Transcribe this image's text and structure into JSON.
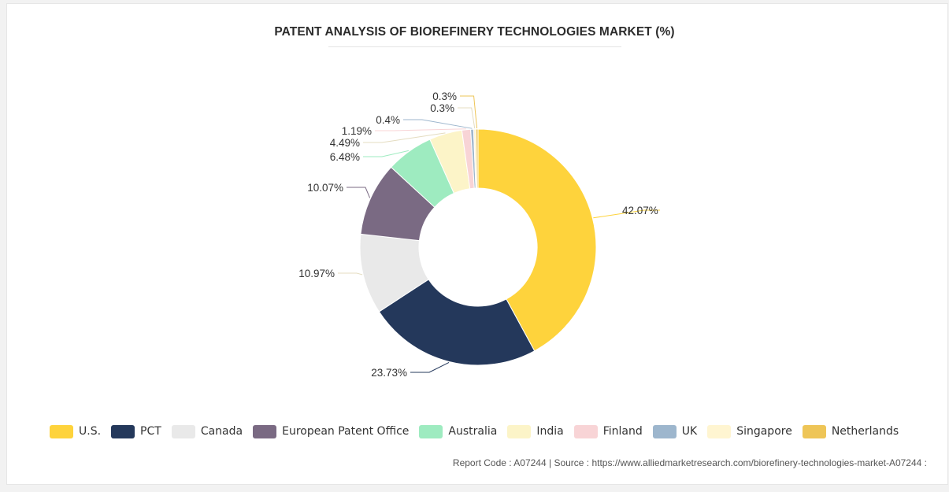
{
  "chart_data": {
    "type": "pie",
    "title": "PATENT ANALYSIS OF BIOREFINERY TECHNOLOGIES MARKET (%)",
    "donut": true,
    "legend_position": "bottom",
    "slices": [
      {
        "name": "U.S.",
        "value": 42.07,
        "label": "42.07%",
        "color": "#FED33C"
      },
      {
        "name": "PCT",
        "value": 23.73,
        "label": "23.73%",
        "color": "#24385B"
      },
      {
        "name": "Canada",
        "value": 10.97,
        "label": "10.97%",
        "color": "#E9E9E9"
      },
      {
        "name": "European Patent Office",
        "value": 10.07,
        "label": "10.07%",
        "color": "#7A6A83"
      },
      {
        "name": "Australia",
        "value": 6.48,
        "label": "6.48%",
        "color": "#9EEBC0"
      },
      {
        "name": "India",
        "value": 4.49,
        "label": "4.49%",
        "color": "#FCF4C8"
      },
      {
        "name": "Finland",
        "value": 1.19,
        "label": "1.19%",
        "color": "#F8D4D6"
      },
      {
        "name": "UK",
        "value": 0.4,
        "label": "0.4%",
        "color": "#9DB6CD"
      },
      {
        "name": "Singapore",
        "value": 0.3,
        "label": "0.3%",
        "color": "#FFF5D1"
      },
      {
        "name": "Netherlands",
        "value": 0.3,
        "label": "0.3%",
        "color": "#EEC557"
      }
    ]
  },
  "footer": {
    "text": "Report Code : A07244  |  Source : https://www.alliedmarketresearch.com/biorefinery-technologies-market-A07244 :"
  }
}
